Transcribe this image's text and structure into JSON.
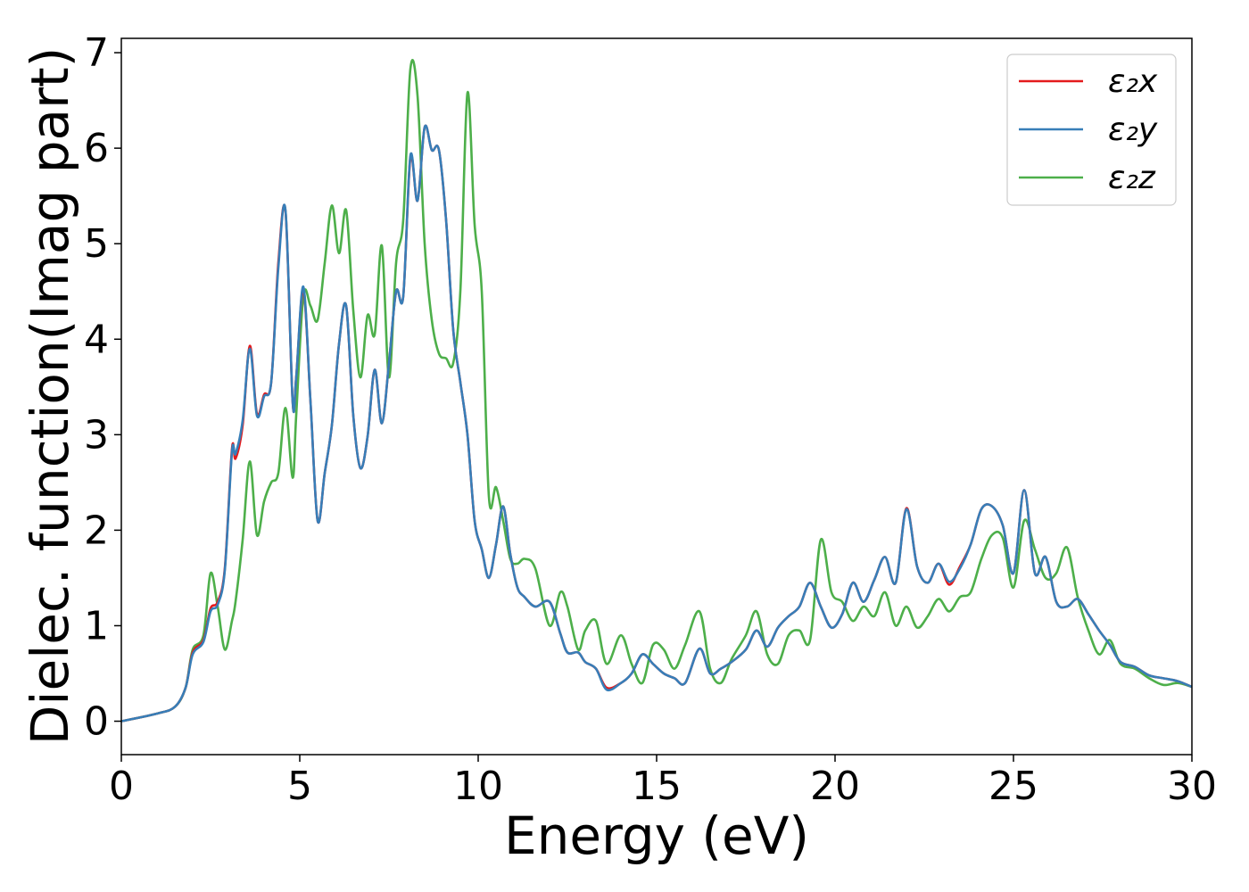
{
  "chart_data": {
    "type": "line",
    "xlabel": "Energy (eV)",
    "ylabel": "Dielec. function(Imag part)",
    "xlim": [
      0,
      30
    ],
    "ylim": [
      -0.35,
      7.15
    ],
    "xticks": [
      0,
      5,
      10,
      15,
      20,
      25,
      30
    ],
    "yticks": [
      0,
      1,
      2,
      3,
      4,
      5,
      6,
      7
    ],
    "grid": false,
    "legend_position": "top-right",
    "x": [
      0,
      1,
      1.5,
      1.8,
      2.0,
      2.3,
      2.5,
      2.7,
      2.9,
      3.1,
      3.2,
      3.4,
      3.6,
      3.8,
      4.0,
      4.2,
      4.4,
      4.6,
      4.8,
      4.9,
      5.1,
      5.3,
      5.5,
      5.7,
      5.9,
      6.1,
      6.3,
      6.5,
      6.7,
      6.9,
      7.1,
      7.3,
      7.5,
      7.7,
      7.9,
      8.1,
      8.3,
      8.5,
      8.7,
      8.9,
      9.1,
      9.3,
      9.5,
      9.7,
      9.9,
      10.1,
      10.3,
      10.5,
      10.7,
      10.9,
      11.1,
      11.3,
      11.6,
      12.0,
      12.3,
      12.5,
      12.8,
      13.0,
      13.3,
      13.6,
      14.0,
      14.3,
      14.6,
      14.9,
      15.2,
      15.5,
      15.8,
      16.2,
      16.5,
      16.8,
      17.1,
      17.5,
      17.8,
      18.1,
      18.4,
      18.7,
      19.0,
      19.3,
      19.6,
      19.9,
      20.2,
      20.5,
      20.8,
      21.1,
      21.4,
      21.7,
      22.0,
      22.3,
      22.6,
      22.9,
      23.2,
      23.5,
      23.8,
      24.1,
      24.4,
      24.7,
      25.0,
      25.3,
      25.6,
      25.9,
      26.2,
      26.5,
      26.8,
      27.1,
      27.4,
      27.7,
      28.0,
      28.4,
      28.8,
      29.2,
      29.6,
      30.0
    ],
    "series": [
      {
        "name": "ε₂x",
        "color": "#e41a1c",
        "values": [
          0,
          0.08,
          0.15,
          0.35,
          0.72,
          0.85,
          1.18,
          1.25,
          1.6,
          2.85,
          2.75,
          3.1,
          3.93,
          3.22,
          3.42,
          3.55,
          4.8,
          5.34,
          3.35,
          3.6,
          4.52,
          3.35,
          2.1,
          2.6,
          3.1,
          3.95,
          4.35,
          3.2,
          2.65,
          2.98,
          3.68,
          3.12,
          3.75,
          4.5,
          4.45,
          5.9,
          5.45,
          6.22,
          5.98,
          5.98,
          5.25,
          4.1,
          3.55,
          3.0,
          2.1,
          1.8,
          1.5,
          1.85,
          2.25,
          1.75,
          1.4,
          1.3,
          1.2,
          1.25,
          0.92,
          0.72,
          0.72,
          0.62,
          0.55,
          0.35,
          0.4,
          0.5,
          0.7,
          0.6,
          0.5,
          0.45,
          0.4,
          0.76,
          0.5,
          0.55,
          0.62,
          0.75,
          0.95,
          0.78,
          0.98,
          1.1,
          1.2,
          1.45,
          1.2,
          0.98,
          1.12,
          1.45,
          1.25,
          1.48,
          1.72,
          1.45,
          2.23,
          1.62,
          1.45,
          1.65,
          1.43,
          1.62,
          1.85,
          2.22,
          2.25,
          2.05,
          1.55,
          2.42,
          1.55,
          1.72,
          1.25,
          1.2,
          1.28,
          1.12,
          0.95,
          0.8,
          0.62,
          0.57,
          0.48,
          0.45,
          0.42,
          0.36
        ]
      },
      {
        "name": "ε₂y",
        "color": "#377eb8",
        "values": [
          0,
          0.08,
          0.15,
          0.35,
          0.7,
          0.83,
          1.15,
          1.22,
          1.58,
          2.82,
          2.8,
          3.15,
          3.9,
          3.2,
          3.4,
          3.55,
          4.75,
          5.35,
          3.35,
          3.6,
          4.55,
          3.35,
          2.1,
          2.6,
          3.1,
          3.95,
          4.35,
          3.2,
          2.65,
          2.98,
          3.68,
          3.12,
          3.75,
          4.5,
          4.45,
          5.92,
          5.45,
          6.22,
          5.98,
          5.98,
          5.25,
          4.1,
          3.55,
          3.0,
          2.1,
          1.8,
          1.5,
          1.85,
          2.25,
          1.75,
          1.4,
          1.3,
          1.2,
          1.25,
          0.92,
          0.72,
          0.72,
          0.62,
          0.55,
          0.33,
          0.4,
          0.5,
          0.7,
          0.6,
          0.5,
          0.45,
          0.4,
          0.76,
          0.5,
          0.55,
          0.62,
          0.75,
          0.95,
          0.78,
          0.98,
          1.1,
          1.2,
          1.45,
          1.2,
          0.98,
          1.12,
          1.45,
          1.25,
          1.48,
          1.72,
          1.45,
          2.22,
          1.62,
          1.45,
          1.65,
          1.46,
          1.6,
          1.85,
          2.22,
          2.25,
          2.05,
          1.55,
          2.42,
          1.55,
          1.72,
          1.25,
          1.2,
          1.28,
          1.12,
          0.95,
          0.8,
          0.62,
          0.57,
          0.48,
          0.45,
          0.42,
          0.36
        ]
      },
      {
        "name": "ε₂z",
        "color": "#4daf4a",
        "values": [
          0,
          0.08,
          0.15,
          0.35,
          0.75,
          0.9,
          1.55,
          1.2,
          0.75,
          1.05,
          1.25,
          1.9,
          2.72,
          1.95,
          2.3,
          2.5,
          2.6,
          3.28,
          2.55,
          3.2,
          4.45,
          4.35,
          4.2,
          4.8,
          5.4,
          4.9,
          5.35,
          4.3,
          3.6,
          4.25,
          4.05,
          4.98,
          3.6,
          4.8,
          5.25,
          6.83,
          6.55,
          5.0,
          4.2,
          3.85,
          3.8,
          3.75,
          4.5,
          6.58,
          5.2,
          4.5,
          2.35,
          2.45,
          2.1,
          1.7,
          1.65,
          1.7,
          1.6,
          1.0,
          1.35,
          1.2,
          0.75,
          0.95,
          1.05,
          0.6,
          0.9,
          0.6,
          0.4,
          0.8,
          0.75,
          0.55,
          0.8,
          1.15,
          0.55,
          0.4,
          0.65,
          0.9,
          1.15,
          0.7,
          0.6,
          0.9,
          0.95,
          0.85,
          1.9,
          1.35,
          1.25,
          1.05,
          1.2,
          1.1,
          1.35,
          1.0,
          1.2,
          0.98,
          1.1,
          1.28,
          1.15,
          1.3,
          1.35,
          1.7,
          1.95,
          1.92,
          1.4,
          2.1,
          1.8,
          1.5,
          1.55,
          1.82,
          1.3,
          0.95,
          0.7,
          0.85,
          0.6,
          0.55,
          0.45,
          0.38,
          0.4,
          0.36
        ]
      }
    ]
  }
}
